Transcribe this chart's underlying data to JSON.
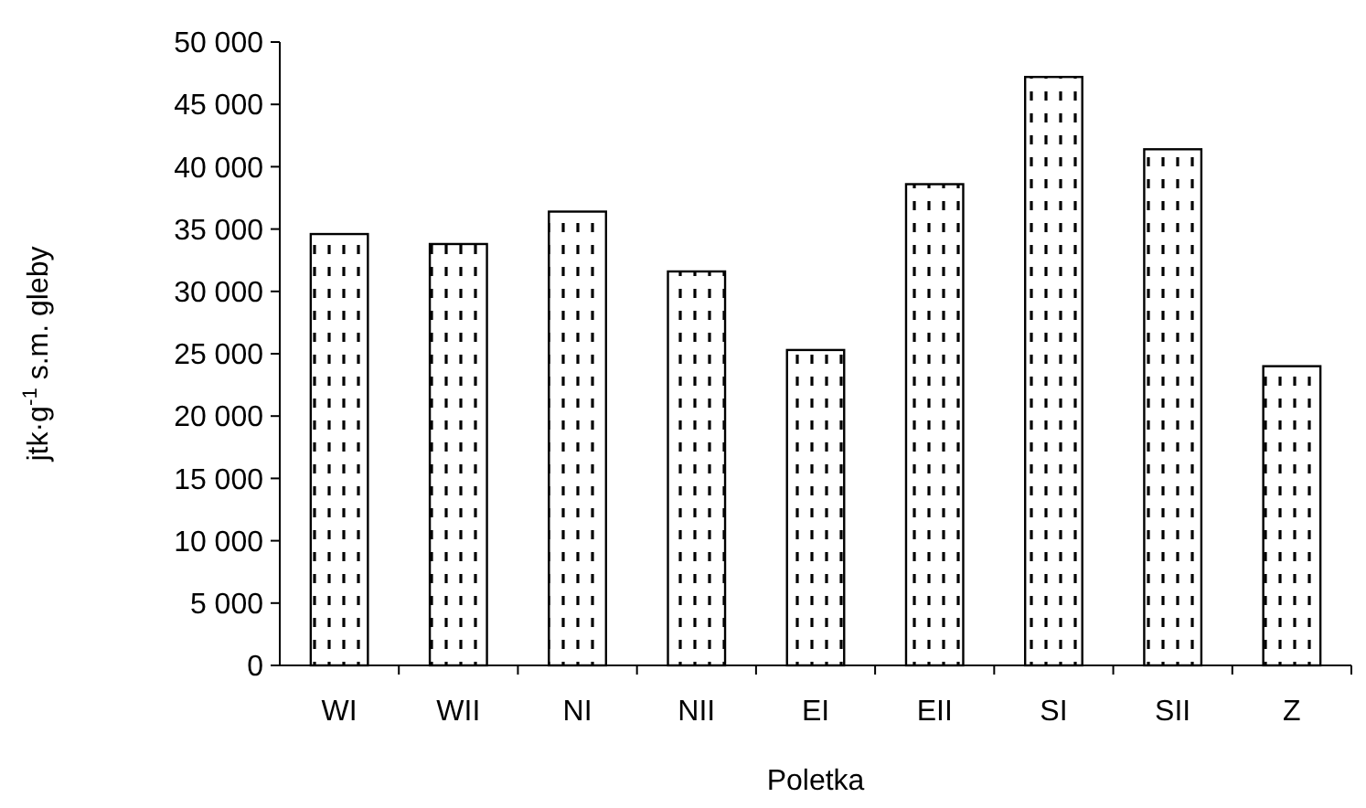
{
  "chart_data": {
    "type": "bar",
    "xlabel": "Poletka",
    "ylabel": "jtk·g$^{-1}$ s.m. gleby",
    "categories": [
      "WI",
      "WII",
      "NI",
      "NII",
      "EI",
      "EII",
      "SI",
      "SII",
      "Z"
    ],
    "values": [
      34600,
      33800,
      36400,
      31600,
      25300,
      38600,
      47200,
      41400,
      24000
    ],
    "color": "#000000",
    "ylim": [
      0,
      50000
    ],
    "yticks": [
      {
        "value": 0,
        "label": "0"
      },
      {
        "value": 5000,
        "label": "5 000"
      },
      {
        "value": 10000,
        "label": "10 000"
      },
      {
        "value": 15000,
        "label": "15 000"
      },
      {
        "value": 20000,
        "label": "20 000"
      },
      {
        "value": 25000,
        "label": "25 000"
      },
      {
        "value": 30000,
        "label": "30 000"
      },
      {
        "value": 35000,
        "label": "35 000"
      },
      {
        "value": 40000,
        "label": "40 000"
      },
      {
        "value": 45000,
        "label": "45 000"
      },
      {
        "value": 50000,
        "label": "50 000"
      }
    ],
    "grid": false
  }
}
